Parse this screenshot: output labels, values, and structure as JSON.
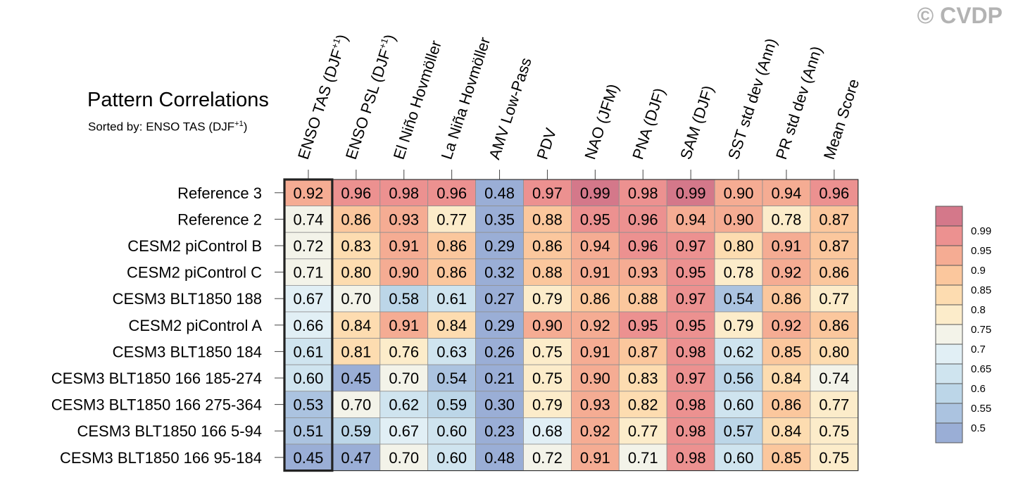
{
  "copyright": "© CVDP",
  "chart_data": {
    "type": "heatmap",
    "title": "Pattern Correlations",
    "subtitle_prefix": "Sorted by: ENSO TAS (DJF",
    "subtitle_sup": "+1",
    "subtitle_suffix": ")",
    "columns": [
      {
        "label": "ENSO TAS (DJF",
        "sup": "+1",
        "suffix": ")"
      },
      {
        "label": "ENSO PSL (DJF",
        "sup": "+1",
        "suffix": ")"
      },
      {
        "label": "El Niño Hovmöller"
      },
      {
        "label": "La Niña Hovmöller"
      },
      {
        "label": "AMV Low-Pass"
      },
      {
        "label": "PDV"
      },
      {
        "label": "NAO (JFM)"
      },
      {
        "label": "PNA (DJF)"
      },
      {
        "label": "SAM (DJF)"
      },
      {
        "label": "SST std dev (Ann)"
      },
      {
        "label": "PR std dev (Ann)"
      },
      {
        "label": "Mean Score"
      }
    ],
    "rows": [
      {
        "label": "Reference 3",
        "values": [
          0.92,
          0.96,
          0.98,
          0.96,
          0.48,
          0.97,
          0.99,
          0.98,
          0.99,
          0.9,
          0.94,
          0.96
        ]
      },
      {
        "label": "Reference 2",
        "values": [
          0.74,
          0.86,
          0.93,
          0.77,
          0.35,
          0.88,
          0.95,
          0.96,
          0.94,
          0.9,
          0.78,
          0.87
        ]
      },
      {
        "label": "CESM2 piControl B",
        "values": [
          0.72,
          0.83,
          0.91,
          0.86,
          0.29,
          0.86,
          0.94,
          0.96,
          0.97,
          0.8,
          0.91,
          0.87
        ]
      },
      {
        "label": "CESM2 piControl C",
        "values": [
          0.71,
          0.8,
          0.9,
          0.86,
          0.32,
          0.88,
          0.91,
          0.93,
          0.95,
          0.78,
          0.92,
          0.86
        ]
      },
      {
        "label": "CESM3 BLT1850 188",
        "values": [
          0.67,
          0.7,
          0.58,
          0.61,
          0.27,
          0.79,
          0.86,
          0.88,
          0.97,
          0.54,
          0.86,
          0.77
        ]
      },
      {
        "label": "CESM2 piControl A",
        "values": [
          0.66,
          0.84,
          0.91,
          0.84,
          0.29,
          0.9,
          0.92,
          0.95,
          0.95,
          0.79,
          0.92,
          0.86
        ]
      },
      {
        "label": "CESM3 BLT1850 184",
        "values": [
          0.61,
          0.81,
          0.76,
          0.63,
          0.26,
          0.75,
          0.91,
          0.87,
          0.98,
          0.62,
          0.85,
          0.8
        ]
      },
      {
        "label": "CESM3 BLT1850 166 185-274",
        "values": [
          0.6,
          0.45,
          0.7,
          0.54,
          0.21,
          0.75,
          0.9,
          0.83,
          0.97,
          0.56,
          0.84,
          0.74
        ]
      },
      {
        "label": "CESM3 BLT1850 166 275-364",
        "values": [
          0.53,
          0.7,
          0.62,
          0.59,
          0.3,
          0.79,
          0.93,
          0.82,
          0.98,
          0.6,
          0.86,
          0.77
        ]
      },
      {
        "label": "CESM3 BLT1850 166 5-94",
        "values": [
          0.51,
          0.59,
          0.67,
          0.6,
          0.23,
          0.68,
          0.92,
          0.77,
          0.98,
          0.57,
          0.84,
          0.75
        ]
      },
      {
        "label": "CESM3 BLT1850 166 95-184",
        "values": [
          0.45,
          0.47,
          0.7,
          0.6,
          0.48,
          0.72,
          0.91,
          0.71,
          0.98,
          0.6,
          0.85,
          0.75
        ]
      }
    ],
    "sorted_column_index": 0,
    "colorbar": {
      "levels": [
        0.5,
        0.55,
        0.6,
        0.65,
        0.7,
        0.75,
        0.8,
        0.85,
        0.9,
        0.95,
        0.99
      ],
      "labels": [
        "0.5",
        "0.55",
        "0.6",
        "0.65",
        "0.7",
        "0.75",
        "0.8",
        "0.85",
        "0.9",
        "0.95",
        "0.99"
      ],
      "colors": [
        "#9aaed6",
        "#abc3e0",
        "#bcd6e8",
        "#cfe4ef",
        "#e1eff5",
        "#f3f3e9",
        "#fcecca",
        "#fddcb0",
        "#fbc79d",
        "#f5ac93",
        "#ec9190",
        "#d4788a"
      ]
    }
  }
}
